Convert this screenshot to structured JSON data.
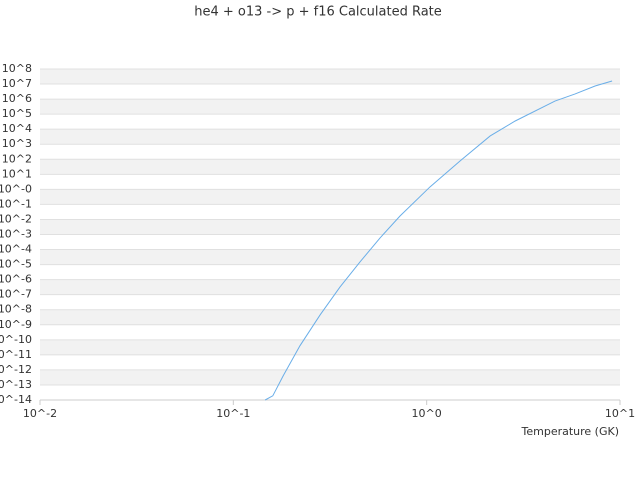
{
  "chart_data": {
    "type": "line",
    "title": "he4 + o13 -> p + f16 Calculated Rate",
    "xlabel": "Temperature (GK)",
    "xscale": "log",
    "yscale": "log",
    "grid": true,
    "xlim": [
      0.01,
      10
    ],
    "ylim": [
      1e-14,
      100000000
    ],
    "xticks": [
      {
        "value": 0.01,
        "label": "10^-2"
      },
      {
        "value": 0.1,
        "label": "10^-1"
      },
      {
        "value": 1,
        "label": "10^0"
      },
      {
        "value": 10,
        "label": "10^1"
      }
    ],
    "yticks": [
      {
        "value": 1e-14,
        "label": "10^-14"
      },
      {
        "value": 1e-13,
        "label": "10^-13"
      },
      {
        "value": 1e-12,
        "label": "10^-12"
      },
      {
        "value": 1e-11,
        "label": "10^-11"
      },
      {
        "value": 1e-10,
        "label": "10^-10"
      },
      {
        "value": 1e-09,
        "label": "10^-9"
      },
      {
        "value": 1e-08,
        "label": "10^-8"
      },
      {
        "value": 1e-07,
        "label": "10^-7"
      },
      {
        "value": 1e-06,
        "label": "10^-6"
      },
      {
        "value": 1e-05,
        "label": "10^-5"
      },
      {
        "value": 0.0001,
        "label": "10^-4"
      },
      {
        "value": 0.001,
        "label": "10^-3"
      },
      {
        "value": 0.01,
        "label": "10^-2"
      },
      {
        "value": 0.1,
        "label": "10^-1"
      },
      {
        "value": 1,
        "label": "10^-0"
      },
      {
        "value": 10,
        "label": "10^1"
      },
      {
        "value": 100,
        "label": "10^2"
      },
      {
        "value": 1000,
        "label": "10^3"
      },
      {
        "value": 10000,
        "label": "10^4"
      },
      {
        "value": 100000,
        "label": "10^5"
      },
      {
        "value": 1000000,
        "label": "10^6"
      },
      {
        "value": 10000000,
        "label": "10^7"
      },
      {
        "value": 100000000,
        "label": "10^8"
      }
    ],
    "x": [
      0.146,
      0.16,
      0.181,
      0.221,
      0.281,
      0.356,
      0.452,
      0.574,
      0.728,
      1.04,
      1.49,
      2.13,
      2.87,
      4.61,
      5.86,
      7.43,
      9.1
    ],
    "series": [
      {
        "color": "#6aaee8",
        "values": [
          1e-14,
          1.9e-14,
          4e-13,
          4e-11,
          4.5e-09,
          3.2e-07,
          1.5e-05,
          0.00059,
          0.017,
          1.45,
          78,
          3550,
          35000,
          740000,
          2200000,
          7400000,
          16000000
        ]
      }
    ]
  }
}
